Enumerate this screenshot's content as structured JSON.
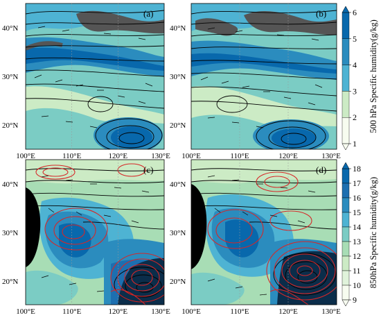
{
  "panels": [
    {
      "label": "(a)",
      "level": "500"
    },
    {
      "label": "(b)",
      "level": "500"
    },
    {
      "label": "(c)",
      "level": "850"
    },
    {
      "label": "(d)",
      "level": "850"
    }
  ],
  "axes": {
    "lon_ticks": [
      "100°E",
      "110°E",
      "120°E",
      "130°E"
    ],
    "lat_ticks": [
      "20°N",
      "30°N",
      "40°N"
    ],
    "lon_range": [
      100,
      130
    ],
    "lat_range": [
      15,
      45
    ]
  },
  "colorbars": [
    {
      "title": "500 hPa Specific humidity(g/kg)",
      "ticks": [
        "1",
        "2",
        "3",
        "4",
        "5",
        "6"
      ],
      "extend": "both",
      "colors": [
        "#f7fcf0",
        "#ccebc5",
        "#7bccc4",
        "#4eb3d3",
        "#2b8cbe",
        "#0868ac"
      ]
    },
    {
      "title": "850hPa Specific humidity(g/kg)",
      "ticks": [
        "9",
        "10",
        "11",
        "12",
        "13",
        "14",
        "15",
        "16",
        "17",
        "18"
      ],
      "extend": "both",
      "colors": [
        "#f7fcf0",
        "#e0f3db",
        "#ccebc5",
        "#a8ddb5",
        "#7bccc4",
        "#4eb3d3",
        "#2b8cbe",
        "#1d6fb0",
        "#0868ac"
      ]
    }
  ],
  "colors": {
    "geopotential_contour": "#000000",
    "extra_contour": "#d62728",
    "topography_mask": "#555555",
    "land_black": "#000000"
  }
}
